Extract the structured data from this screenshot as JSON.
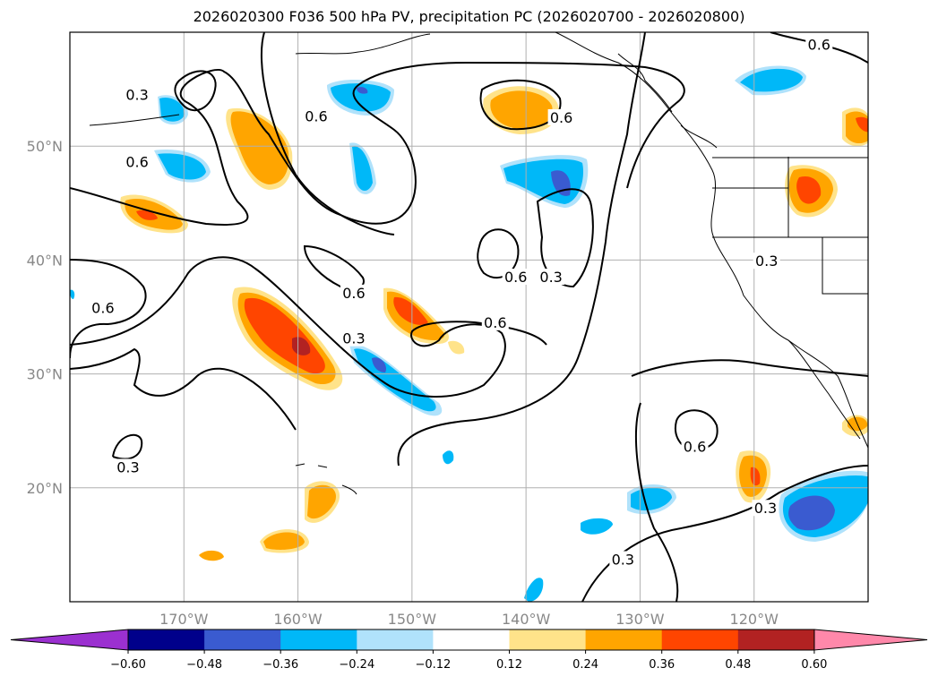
{
  "figure": {
    "title": "2026020300 F036 500 hPa PV, precipitation PC (2026020700 - 2026020800)"
  },
  "map": {
    "projection": "equirectangular",
    "lon_range": [
      -180,
      -110
    ],
    "lat_range": [
      10,
      60
    ],
    "grid": true,
    "lat_ticks": [
      {
        "value": 20,
        "label": "20°N"
      },
      {
        "value": 30,
        "label": "30°N"
      },
      {
        "value": 40,
        "label": "40°N"
      },
      {
        "value": 50,
        "label": "50°N"
      }
    ],
    "lon_ticks": [
      {
        "value": -170,
        "label": "170°W"
      },
      {
        "value": -160,
        "label": "160°W"
      },
      {
        "value": -150,
        "label": "150°W"
      },
      {
        "value": -140,
        "label": "140°W"
      },
      {
        "value": -130,
        "label": "130°W"
      },
      {
        "value": -120,
        "label": "120°W"
      }
    ],
    "contour_labels": [
      {
        "text": "0.6",
        "lon": -158.4,
        "lat": 52.4
      },
      {
        "text": "0.3",
        "lon": -174.1,
        "lat": 54.3
      },
      {
        "text": "0.6",
        "lon": -174.1,
        "lat": 48.4
      },
      {
        "text": "0.6",
        "lon": -136.9,
        "lat": 52.3
      },
      {
        "text": "0.6",
        "lon": -114.3,
        "lat": 58.7
      },
      {
        "text": "0.6",
        "lon": -155.1,
        "lat": 36.9
      },
      {
        "text": "0.3",
        "lon": -155.1,
        "lat": 32.9
      },
      {
        "text": "0.6",
        "lon": -177.1,
        "lat": 35.6
      },
      {
        "text": "0.6",
        "lon": -142.7,
        "lat": 34.3
      },
      {
        "text": "0.3",
        "lon": -137.8,
        "lat": 38.3
      },
      {
        "text": "0.6",
        "lon": -140.9,
        "lat": 38.3
      },
      {
        "text": "0.3",
        "lon": -118.9,
        "lat": 39.7
      },
      {
        "text": "0.3",
        "lon": -174.9,
        "lat": 21.6
      },
      {
        "text": "0.6",
        "lon": -125.2,
        "lat": 23.4
      },
      {
        "text": "0.3",
        "lon": -119.0,
        "lat": 18.0
      },
      {
        "text": "0.3",
        "lon": -131.5,
        "lat": 13.5
      }
    ]
  },
  "colorbar": {
    "levels": [
      -0.6,
      -0.48,
      -0.36,
      -0.24,
      -0.12,
      0.12,
      0.24,
      0.36,
      0.48,
      0.6
    ],
    "labels": [
      "−0.60",
      "−0.48",
      "−0.36",
      "−0.24",
      "−0.12",
      "0.12",
      "0.24",
      "0.36",
      "0.48",
      "0.60"
    ],
    "colors": [
      "#9b30d0",
      "#00008b",
      "#3a5bd0",
      "#00b8f8",
      "#b0e2fb",
      "#ffffff",
      "#ffe38a",
      "#ffa500",
      "#ff4500",
      "#b22222",
      "#ff88aa"
    ],
    "extend": "both"
  },
  "colors": {
    "positive_pc": [
      "#ffe38a",
      "#ffa500",
      "#ff4500",
      "#b22222"
    ],
    "negative_pc": [
      "#b0e2fb",
      "#00b8f8",
      "#3a5bd0",
      "#00008b"
    ],
    "grid": "#b0b0b0",
    "pv_contour": "#000000"
  }
}
